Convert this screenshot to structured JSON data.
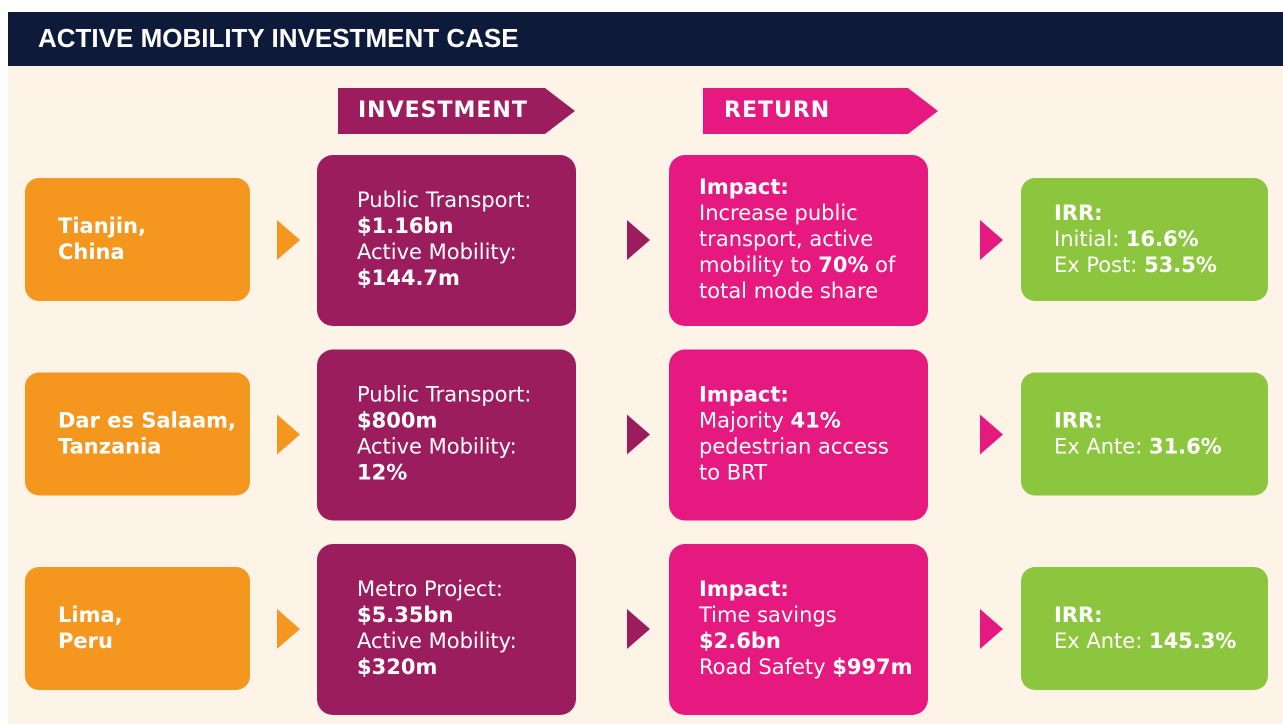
{
  "header": {
    "title": "ACTIVE MOBILITY INVESTMENT CASE"
  },
  "column_headers": [
    "INVESTMENT",
    "RETURN"
  ],
  "rows": [
    {
      "city": [
        "Tianjin,",
        "China"
      ],
      "investment": [
        [
          "Public Transport:"
        ],
        [
          {
            "text": "$1.16bn",
            "bold": true
          }
        ],
        [
          "Active Mobility:"
        ],
        [
          {
            "text": "$144.7m",
            "bold": true
          }
        ]
      ],
      "return": [
        [
          {
            "text": "Impact:",
            "bold": true
          }
        ],
        [
          "Increase public"
        ],
        [
          "transport, active"
        ],
        [
          "mobility to ",
          {
            "text": "70%",
            "bold": true
          },
          " of"
        ],
        [
          "total mode share"
        ]
      ],
      "irr": [
        [
          {
            "text": "IRR:",
            "bold": true
          }
        ],
        [
          "Initial: ",
          {
            "text": "16.6%",
            "bold": true
          }
        ],
        [
          "Ex Post: ",
          {
            "text": "53.5%",
            "bold": true
          }
        ]
      ]
    },
    {
      "city": [
        "Dar es Salaam,",
        "Tanzania"
      ],
      "investment": [
        [
          "Public Transport:"
        ],
        [
          {
            "text": "$800m",
            "bold": true
          }
        ],
        [
          "Active Mobility:"
        ],
        [
          {
            "text": "12%",
            "bold": true
          }
        ]
      ],
      "return": [
        [
          {
            "text": "Impact:",
            "bold": true
          }
        ],
        [
          "Majority ",
          {
            "text": "41%",
            "bold": true
          }
        ],
        [
          "pedestrian access"
        ],
        [
          "to BRT"
        ]
      ],
      "irr": [
        [
          {
            "text": "IRR:",
            "bold": true
          }
        ],
        [
          "Ex Ante: ",
          {
            "text": "31.6%",
            "bold": true
          }
        ]
      ]
    },
    {
      "city": [
        "Lima,",
        "Peru"
      ],
      "investment": [
        [
          "Metro Project:"
        ],
        [
          {
            "text": "$5.35bn",
            "bold": true
          }
        ],
        [
          "Active Mobility:"
        ],
        [
          {
            "text": "$320m",
            "bold": true
          }
        ]
      ],
      "return": [
        [
          {
            "text": "Impact:",
            "bold": true
          }
        ],
        [
          "Time savings"
        ],
        [
          {
            "text": "$2.6bn",
            "bold": true
          }
        ],
        [
          "Road Safety ",
          {
            "text": "$997m",
            "bold": true
          }
        ]
      ],
      "irr": [
        [
          {
            "text": "IRR:",
            "bold": true
          }
        ],
        [
          "Ex Ante: ",
          {
            "text": "145.3%",
            "bold": true
          }
        ]
      ]
    }
  ]
}
